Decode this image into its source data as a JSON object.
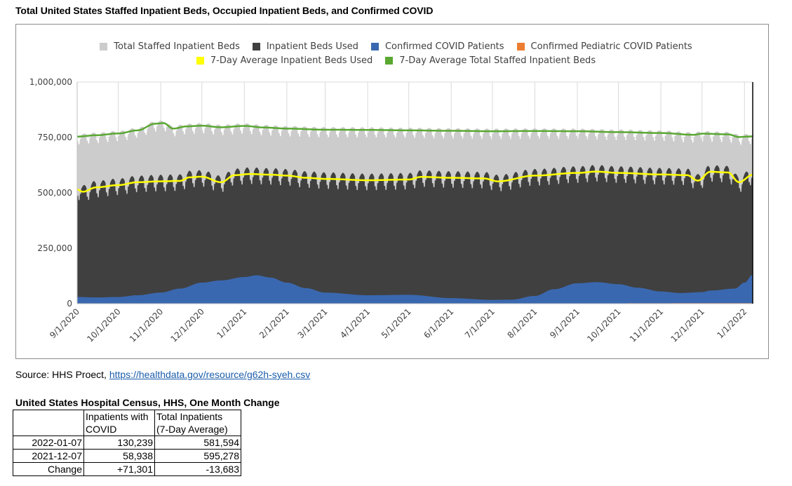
{
  "page": {
    "chart_title": "Total United States Staffed Inpatient Beds, Occupied Inpatient Beds, and Confirmed COVID",
    "source_prefix": "Source: HHS Proect, ",
    "source_link_text": "https://healthdata.gov/resource/g62h-syeh.csv"
  },
  "legend": [
    {
      "label": "Total Staffed Inpatient Beds",
      "color": "#cccccc"
    },
    {
      "label": "Inpatient Beds Used",
      "color": "#404040"
    },
    {
      "label": "Confirmed COVID Patients",
      "color": "#3a68b0"
    },
    {
      "label": "Confirmed Pediatric COVID Patients",
      "color": "#ed7d31"
    },
    {
      "label": "7-Day Average Inpatient Beds Used",
      "color": "#ffff00"
    },
    {
      "label": "7-Day Average Total Staffed Inpatient Beds",
      "color": "#5aa832"
    }
  ],
  "chart_data": {
    "type": "area",
    "title": "Total United States Staffed Inpatient Beds, Occupied Inpatient Beds, and Confirmed COVID",
    "xlabel": "",
    "ylabel": "",
    "ylim": [
      0,
      1000000
    ],
    "yticks": [
      0,
      250000,
      500000,
      750000,
      1000000
    ],
    "ytick_labels": [
      "0",
      "250,000",
      "500,000",
      "750,000",
      "1,000,000"
    ],
    "xlim": [
      "2020-09-01",
      "2022-01-07"
    ],
    "xtick_labels": [
      "9/1/2020",
      "10/1/2020",
      "11/1/2020",
      "12/1/2020",
      "1/1/2021",
      "2/1/2021",
      "3/1/2021",
      "4/1/2021",
      "5/1/2021",
      "6/1/2021",
      "7/1/2021",
      "8/1/2021",
      "9/1/2021",
      "10/1/2021",
      "11/1/2021",
      "12/1/2021",
      "1/1/2022"
    ],
    "xtick_dates": [
      "2020-09-01",
      "2020-10-01",
      "2020-11-01",
      "2020-12-01",
      "2021-01-01",
      "2021-02-01",
      "2021-03-01",
      "2021-04-01",
      "2021-05-01",
      "2021-06-01",
      "2021-07-01",
      "2021-08-01",
      "2021-09-01",
      "2021-10-01",
      "2021-11-01",
      "2021-12-01",
      "2022-01-01"
    ],
    "grid": true,
    "legend_position": "top",
    "series": [
      {
        "name": "7-Day Average Total Staffed Inpatient Beds",
        "kind": "line",
        "x": [
          "2020-09-01",
          "2020-09-15",
          "2020-10-01",
          "2020-10-15",
          "2020-10-28",
          "2020-11-03",
          "2020-11-10",
          "2020-11-20",
          "2020-12-01",
          "2020-12-15",
          "2021-01-01",
          "2021-01-15",
          "2021-02-01",
          "2021-03-01",
          "2021-04-01",
          "2021-05-01",
          "2021-06-01",
          "2021-07-01",
          "2021-08-01",
          "2021-09-01",
          "2021-10-01",
          "2021-11-01",
          "2021-11-25",
          "2021-12-01",
          "2021-12-20",
          "2021-12-28",
          "2022-01-07"
        ],
        "values": [
          754000,
          760000,
          768000,
          782000,
          812000,
          815000,
          790000,
          800000,
          803000,
          796000,
          802000,
          795000,
          790000,
          785000,
          784000,
          782000,
          780000,
          778000,
          779000,
          778000,
          774000,
          770000,
          762000,
          767000,
          764000,
          752000,
          755000
        ]
      },
      {
        "name": "Total Staffed Inpatient Beds",
        "kind": "area",
        "base_from": "7-Day Average Total Staffed Inpatient Beds",
        "weekly_high": 12000,
        "weekly_low": -35000
      },
      {
        "name": "7-Day Average Inpatient Beds Used",
        "kind": "line",
        "x": [
          "2020-09-01",
          "2020-09-05",
          "2020-09-15",
          "2020-10-01",
          "2020-10-15",
          "2020-11-01",
          "2020-11-15",
          "2020-11-22",
          "2020-12-01",
          "2020-12-15",
          "2020-12-25",
          "2021-01-05",
          "2021-01-20",
          "2021-02-01",
          "2021-02-15",
          "2021-03-01",
          "2021-04-01",
          "2021-05-01",
          "2021-05-10",
          "2021-06-01",
          "2021-06-25",
          "2021-07-05",
          "2021-08-01",
          "2021-09-01",
          "2021-09-15",
          "2021-10-01",
          "2021-11-01",
          "2021-11-20",
          "2021-11-28",
          "2021-12-07",
          "2021-12-20",
          "2021-12-28",
          "2022-01-07"
        ],
        "values": [
          515000,
          505000,
          525000,
          535000,
          548000,
          552000,
          554000,
          570000,
          573000,
          548000,
          580000,
          585000,
          582000,
          578000,
          568000,
          563000,
          557000,
          560000,
          572000,
          568000,
          565000,
          552000,
          578000,
          590000,
          596000,
          590000,
          583000,
          580000,
          555000,
          595278,
          592000,
          548000,
          581594
        ]
      },
      {
        "name": "Inpatient Beds Used",
        "kind": "area",
        "base_from": "7-Day Average Inpatient Beds Used",
        "weekly_high": 30000,
        "weekly_low": -45000
      },
      {
        "name": "Confirmed COVID Patients",
        "kind": "area",
        "x": [
          "2020-09-01",
          "2020-09-15",
          "2020-10-01",
          "2020-10-15",
          "2020-11-01",
          "2020-11-15",
          "2020-12-01",
          "2020-12-15",
          "2021-01-01",
          "2021-01-10",
          "2021-01-20",
          "2021-02-01",
          "2021-02-15",
          "2021-03-01",
          "2021-04-01",
          "2021-05-01",
          "2021-06-01",
          "2021-07-01",
          "2021-07-15",
          "2021-08-01",
          "2021-08-15",
          "2021-09-01",
          "2021-09-15",
          "2021-10-01",
          "2021-10-15",
          "2021-11-01",
          "2021-11-15",
          "2021-12-01",
          "2021-12-07",
          "2021-12-25",
          "2022-01-01",
          "2022-01-07"
        ],
        "values": [
          30000,
          28000,
          30000,
          38000,
          50000,
          68000,
          95000,
          105000,
          120000,
          128000,
          118000,
          95000,
          70000,
          50000,
          38000,
          40000,
          25000,
          17000,
          18000,
          35000,
          65000,
          92000,
          97000,
          88000,
          72000,
          55000,
          48000,
          52000,
          58938,
          68000,
          95000,
          130239
        ]
      },
      {
        "name": "Confirmed Pediatric COVID Patients",
        "kind": "area",
        "x": [
          "2020-09-01",
          "2021-01-01",
          "2021-07-01",
          "2022-01-07"
        ],
        "values": [
          0,
          0,
          1000,
          2500
        ]
      }
    ]
  },
  "table": {
    "title": "United States Hospital Census, HHS, One Month Change",
    "headers": [
      "",
      "Inpatients with COVID",
      "Total Inpatients (7-Day Average)"
    ],
    "header_lines": [
      [
        "Inpatients with",
        "COVID"
      ],
      [
        "Total Inpatients",
        "(7-Day Average)"
      ]
    ],
    "rows": [
      {
        "label": "2022-01-07",
        "covid": "130,239",
        "total": "581,594"
      },
      {
        "label": "2021-12-07",
        "covid": "58,938",
        "total": "595,278"
      },
      {
        "label": "Change",
        "covid": "+71,301",
        "total": "-13,683"
      }
    ]
  }
}
